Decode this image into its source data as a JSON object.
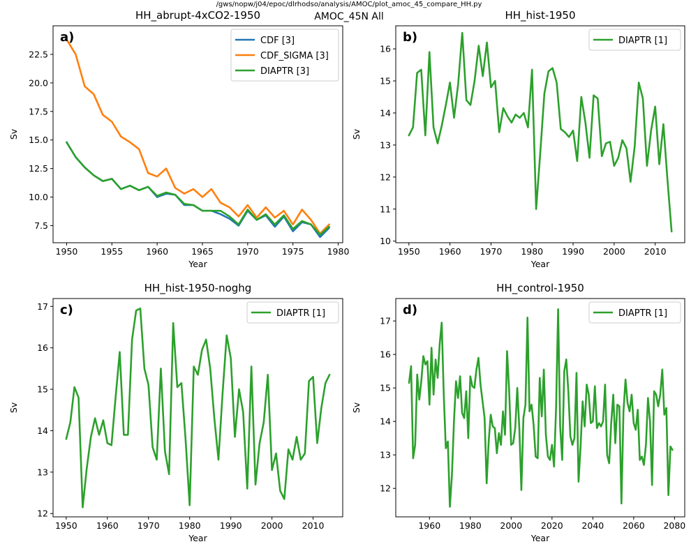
{
  "figure": {
    "path_title": "/gws/nopw/j04/epoc/dlrhodso/analysis/AMOC/plot_amoc_45_compare_HH.py",
    "suptitle": "AMOC_45N All"
  },
  "colors": {
    "CDF": "#1f77b4",
    "CDF_SIGMA": "#ff7f0e",
    "DIAPTR": "#2ca02c"
  },
  "chart_data": [
    {
      "type": "line",
      "panel_label": "a)",
      "title": "HH_abrupt-4xCO2-1950",
      "xlabel": "Year",
      "ylabel": "Sv",
      "xlim": [
        1948.5,
        1980.5
      ],
      "ylim": [
        6.0,
        25.0
      ],
      "xticks": [
        1950,
        1955,
        1960,
        1965,
        1970,
        1975,
        1980
      ],
      "yticks": [
        7.5,
        10.0,
        12.5,
        15.0,
        17.5,
        20.0,
        22.5
      ],
      "ytick_labels": [
        "7.5",
        "10.0",
        "12.5",
        "15.0",
        "17.5",
        "20.0",
        "22.5"
      ],
      "legend_position": "top-right",
      "x": [
        1950,
        1951,
        1952,
        1953,
        1954,
        1955,
        1956,
        1957,
        1958,
        1959,
        1960,
        1961,
        1962,
        1963,
        1964,
        1965,
        1966,
        1967,
        1968,
        1969,
        1970,
        1971,
        1972,
        1973,
        1974,
        1975,
        1976,
        1977,
        1978,
        1979
      ],
      "series": [
        {
          "name": "CDF [3]",
          "color_key": "CDF",
          "values": [
            14.8,
            13.5,
            12.6,
            11.9,
            11.4,
            11.6,
            10.7,
            11.0,
            10.6,
            10.9,
            10.0,
            10.3,
            10.2,
            9.3,
            9.3,
            8.8,
            8.8,
            8.5,
            8.1,
            7.5,
            8.8,
            8.0,
            8.4,
            7.4,
            8.3,
            7.0,
            7.8,
            7.6,
            6.5,
            7.3
          ]
        },
        {
          "name": "CDF_SIGMA [3]",
          "color_key": "CDF_SIGMA",
          "values": [
            23.8,
            22.5,
            19.7,
            19.0,
            17.2,
            16.6,
            15.3,
            14.8,
            14.2,
            12.1,
            11.8,
            12.5,
            10.8,
            10.3,
            10.7,
            10.0,
            10.7,
            9.5,
            9.1,
            8.3,
            9.3,
            8.2,
            9.1,
            8.2,
            8.8,
            7.6,
            8.9,
            8.0,
            6.8,
            7.6
          ]
        },
        {
          "name": "DIAPTR [3]",
          "color_key": "DIAPTR",
          "values": [
            14.8,
            13.5,
            12.6,
            11.9,
            11.4,
            11.6,
            10.7,
            11.0,
            10.6,
            10.9,
            10.1,
            10.4,
            10.2,
            9.4,
            9.3,
            8.8,
            8.8,
            8.8,
            8.3,
            7.6,
            8.9,
            8.0,
            8.5,
            7.6,
            8.4,
            7.2,
            7.9,
            7.6,
            6.7,
            7.4
          ]
        }
      ]
    },
    {
      "type": "line",
      "panel_label": "b)",
      "title": "HH_hist-1950",
      "xlabel": "Year",
      "ylabel": "Sv",
      "xlim": [
        1946.8,
        2017.2
      ],
      "ylim": [
        9.95,
        16.72
      ],
      "xticks": [
        1950,
        1960,
        1970,
        1980,
        1990,
        2000,
        2010
      ],
      "yticks": [
        10,
        11,
        12,
        13,
        14,
        15,
        16
      ],
      "ytick_labels": [
        "10",
        "11",
        "12",
        "13",
        "14",
        "15",
        "16"
      ],
      "legend_position": "top-right",
      "x_start": 1950,
      "series": [
        {
          "name": "DIAPTR [1]",
          "color_key": "DIAPTR",
          "values": [
            13.3,
            13.55,
            15.25,
            15.35,
            13.3,
            15.9,
            13.55,
            13.05,
            13.6,
            14.25,
            14.95,
            13.85,
            14.9,
            16.5,
            14.4,
            14.25,
            15.0,
            16.1,
            15.15,
            16.2,
            14.8,
            15.0,
            13.4,
            14.15,
            13.9,
            13.7,
            13.95,
            13.85,
            14.0,
            13.55,
            15.35,
            11.0,
            12.75,
            14.6,
            15.3,
            15.4,
            14.95,
            13.5,
            13.4,
            13.25,
            13.45,
            12.5,
            14.5,
            13.7,
            12.6,
            14.55,
            14.45,
            12.65,
            13.05,
            13.1,
            12.35,
            12.6,
            13.15,
            12.9,
            11.85,
            12.95,
            14.95,
            14.45,
            12.35,
            13.45,
            14.2,
            12.4,
            13.65,
            11.9,
            10.3
          ]
        }
      ]
    },
    {
      "type": "line",
      "panel_label": "c)",
      "title": "HH_hist-1950-noghg",
      "xlabel": "Year",
      "ylabel": "Sv",
      "xlim": [
        1946.8,
        2017.2
      ],
      "ylim": [
        11.92,
        17.19
      ],
      "xticks": [
        1950,
        1960,
        1970,
        1980,
        1990,
        2000,
        2010
      ],
      "yticks": [
        12,
        13,
        14,
        15,
        16,
        17
      ],
      "ytick_labels": [
        "12",
        "13",
        "14",
        "15",
        "16",
        "17"
      ],
      "legend_position": "top-right",
      "x_start": 1950,
      "series": [
        {
          "name": "DIAPTR [1]",
          "color_key": "DIAPTR",
          "values": [
            13.8,
            14.2,
            15.05,
            14.8,
            12.15,
            13.1,
            13.85,
            14.3,
            13.9,
            14.25,
            13.7,
            13.65,
            14.8,
            15.9,
            13.9,
            13.9,
            16.2,
            16.9,
            16.95,
            15.5,
            15.1,
            13.6,
            13.3,
            15.5,
            13.5,
            12.95,
            16.6,
            15.05,
            15.15,
            13.8,
            12.2,
            15.55,
            15.35,
            15.95,
            16.2,
            15.5,
            14.3,
            13.3,
            14.9,
            16.3,
            15.75,
            13.85,
            15.0,
            14.45,
            12.6,
            15.55,
            12.7,
            13.7,
            14.2,
            15.35,
            13.05,
            13.45,
            12.55,
            12.35,
            13.55,
            13.3,
            13.85,
            13.3,
            13.45,
            15.2,
            15.3,
            13.7,
            14.55,
            15.15,
            15.35
          ]
        }
      ]
    },
    {
      "type": "line",
      "panel_label": "d)",
      "title": "HH_control-1950",
      "xlabel": "Year",
      "ylabel": "Sv",
      "xlim": [
        1943.5,
        2085.0
      ],
      "ylim": [
        11.15,
        17.67
      ],
      "xticks": [
        1960,
        1980,
        2000,
        2020,
        2040,
        2060,
        2080
      ],
      "yticks": [
        12,
        13,
        14,
        15,
        16,
        17
      ],
      "ytick_labels": [
        "12",
        "13",
        "14",
        "15",
        "16",
        "17"
      ],
      "legend_position": "top-right",
      "x_start": 1950,
      "series": [
        {
          "name": "DIAPTR [1]",
          "color_key": "DIAPTR",
          "values": [
            15.15,
            15.65,
            12.9,
            13.3,
            15.4,
            14.65,
            15.2,
            15.95,
            15.7,
            15.8,
            14.5,
            16.2,
            14.8,
            15.85,
            15.3,
            16.3,
            16.95,
            14.8,
            13.2,
            13.4,
            11.45,
            12.4,
            14.0,
            15.2,
            14.7,
            15.35,
            14.25,
            14.1,
            14.9,
            13.5,
            15.35,
            15.05,
            15.0,
            15.55,
            15.9,
            15.1,
            14.6,
            14.1,
            12.15,
            13.4,
            14.2,
            13.85,
            13.8,
            13.05,
            13.65,
            13.3,
            14.3,
            13.6,
            16.1,
            14.95,
            13.3,
            13.35,
            13.8,
            15.0,
            13.8,
            11.95,
            14.1,
            14.5,
            17.1,
            14.3,
            14.5,
            13.9,
            12.95,
            12.9,
            15.3,
            14.15,
            15.55,
            13.6,
            12.95,
            12.85,
            13.3,
            12.65,
            14.4,
            17.35,
            13.85,
            12.85,
            15.5,
            15.85,
            14.9,
            13.55,
            13.3,
            13.5,
            15.45,
            12.2,
            13.25,
            14.6,
            13.85,
            15.1,
            14.8,
            13.95,
            14.0,
            15.05,
            13.8,
            13.95,
            13.85,
            14.0,
            15.1,
            13.0,
            12.75,
            13.95,
            14.8,
            13.35,
            14.5,
            14.45,
            11.55,
            14.3,
            15.25,
            14.55,
            14.3,
            14.8,
            13.95,
            13.75,
            14.35,
            12.85,
            12.95,
            12.7,
            13.3,
            14.7,
            14.0,
            12.1,
            14.9,
            14.8,
            14.45,
            14.8,
            15.55,
            14.2,
            14.4,
            11.8,
            13.25,
            13.15
          ]
        }
      ]
    }
  ]
}
